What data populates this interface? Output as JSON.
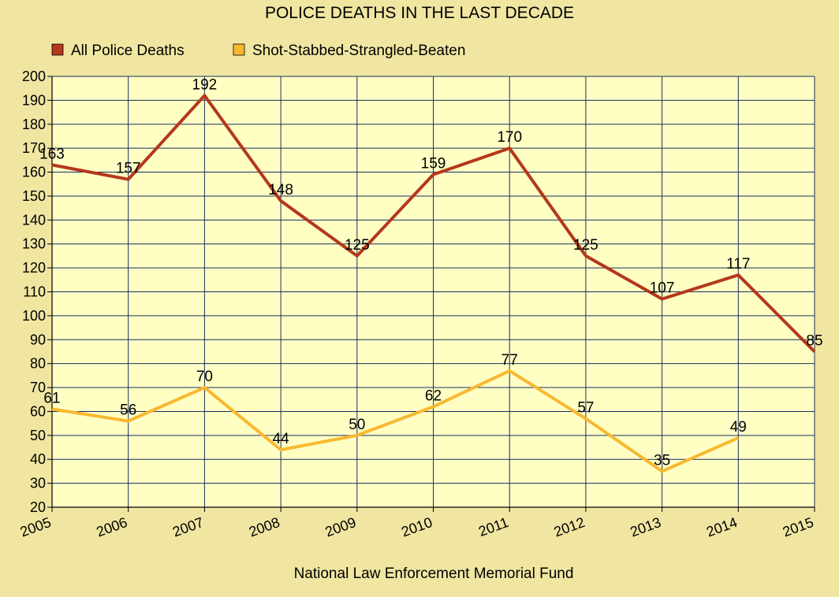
{
  "chart_data": {
    "type": "line",
    "title": "POLICE DEATHS IN THE LAST DECADE",
    "source": "National Law Enforcement Memorial Fund",
    "x": [
      "2005",
      "2006",
      "2007",
      "2008",
      "2009",
      "2010",
      "2011",
      "2012",
      "2013",
      "2014",
      "2015"
    ],
    "ylim": [
      20,
      200
    ],
    "ystep": 10,
    "grid": true,
    "legend_position": "top-left",
    "series": [
      {
        "name": "All Police Deaths",
        "color": "#b5381a",
        "values": [
          163,
          157,
          192,
          148,
          125,
          159,
          170,
          125,
          107,
          117,
          85
        ]
      },
      {
        "name": "Shot-Stabbed-Strangled-Beaten",
        "color": "#f8b830",
        "values": [
          61,
          56,
          70,
          44,
          50,
          62,
          77,
          57,
          35,
          49,
          null
        ]
      }
    ],
    "colors": {
      "background": "#f0e6a2",
      "plot_background": "#ffffc4",
      "grid": "#1b2f5e"
    }
  }
}
